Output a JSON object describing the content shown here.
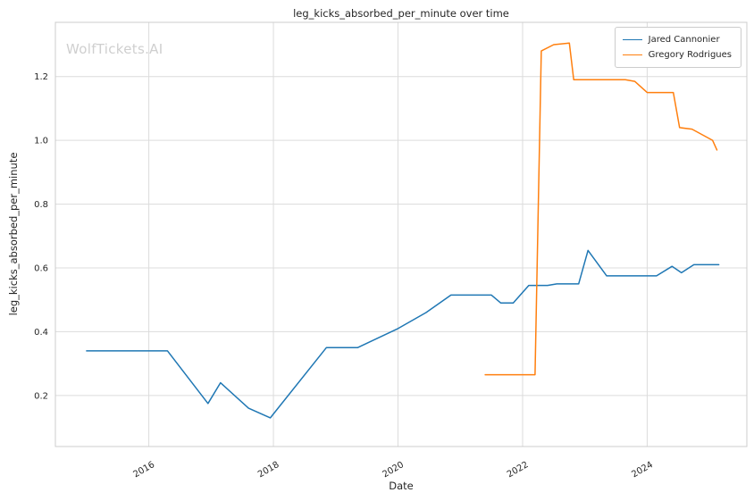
{
  "watermark": "WolfTickets.AI",
  "colors": {
    "grid": "#dcdcdc",
    "spine": "#cccccc",
    "text": "#262626",
    "watermark": "#cfcfcf",
    "series_blue": "#1f77b4",
    "series_orange": "#ff7f0e"
  },
  "chart_data": {
    "type": "line",
    "title": "leg_kicks_absorbed_per_minute over time",
    "xlabel": "Date",
    "ylabel": "leg_kicks_absorbed_per_minute",
    "x_ticks": [
      2016,
      2018,
      2020,
      2022,
      2024
    ],
    "y_ticks": [
      0.2,
      0.4,
      0.6,
      0.8,
      1.0,
      1.2
    ],
    "xlim": [
      2014.5,
      2025.6
    ],
    "ylim": [
      0.04,
      1.37
    ],
    "grid": true,
    "legend_position": "upper right",
    "series": [
      {
        "name": "Jared Cannonier",
        "color": "#1f77b4",
        "points": [
          [
            2015.0,
            0.34
          ],
          [
            2016.3,
            0.34
          ],
          [
            2016.95,
            0.175
          ],
          [
            2017.15,
            0.24
          ],
          [
            2017.6,
            0.16
          ],
          [
            2017.95,
            0.13
          ],
          [
            2018.85,
            0.35
          ],
          [
            2019.35,
            0.35
          ],
          [
            2020.0,
            0.41
          ],
          [
            2020.45,
            0.46
          ],
          [
            2020.85,
            0.515
          ],
          [
            2021.5,
            0.515
          ],
          [
            2021.65,
            0.49
          ],
          [
            2021.85,
            0.49
          ],
          [
            2022.1,
            0.545
          ],
          [
            2022.4,
            0.545
          ],
          [
            2022.55,
            0.55
          ],
          [
            2022.9,
            0.55
          ],
          [
            2023.05,
            0.655
          ],
          [
            2023.35,
            0.575
          ],
          [
            2024.15,
            0.575
          ],
          [
            2024.4,
            0.605
          ],
          [
            2024.55,
            0.585
          ],
          [
            2024.75,
            0.61
          ],
          [
            2025.15,
            0.61
          ]
        ]
      },
      {
        "name": "Gregory Rodrigues",
        "color": "#ff7f0e",
        "points": [
          [
            2021.4,
            0.265
          ],
          [
            2022.2,
            0.265
          ],
          [
            2022.3,
            1.28
          ],
          [
            2022.5,
            1.3
          ],
          [
            2022.75,
            1.305
          ],
          [
            2022.82,
            1.19
          ],
          [
            2023.3,
            1.19
          ],
          [
            2023.65,
            1.19
          ],
          [
            2023.8,
            1.185
          ],
          [
            2024.0,
            1.15
          ],
          [
            2024.42,
            1.15
          ],
          [
            2024.52,
            1.04
          ],
          [
            2024.72,
            1.035
          ],
          [
            2025.05,
            1.0
          ],
          [
            2025.12,
            0.97
          ]
        ]
      }
    ]
  }
}
